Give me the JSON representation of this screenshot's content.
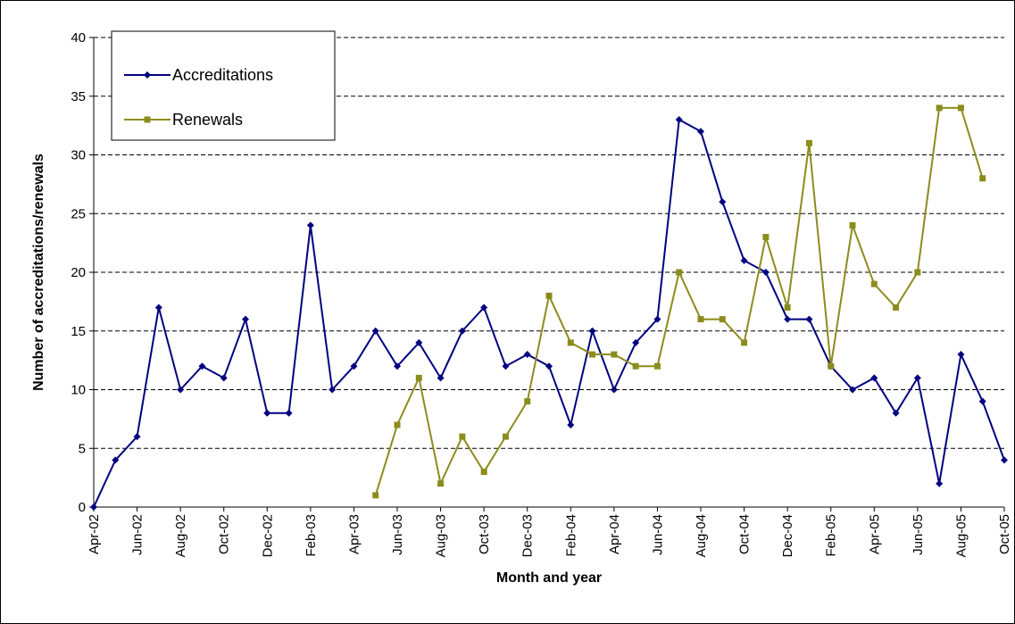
{
  "chart_data": {
    "type": "line",
    "x_label": "Month and year",
    "y_label": "Number of accreditations/renewals",
    "categories": [
      "Apr-02",
      null,
      "Jun-02",
      null,
      "Aug-02",
      null,
      "Oct-02",
      null,
      "Dec-02",
      null,
      "Feb-03",
      null,
      "Apr-03",
      null,
      "Jun-03",
      null,
      "Aug-03",
      null,
      "Oct-03",
      null,
      "Dec-03",
      null,
      "Feb-04",
      null,
      "Apr-04",
      null,
      "Jun-04",
      null,
      "Aug-04",
      null,
      "Oct-04",
      null,
      "Dec-04",
      null,
      "Feb-05",
      null,
      "Apr-05",
      null,
      "Jun-05",
      null,
      "Aug-05",
      null,
      "Oct-05"
    ],
    "series": [
      {
        "name": "Accreditations",
        "color": "#000080",
        "marker": "diamond",
        "values": [
          0,
          4,
          6,
          17,
          10,
          12,
          11,
          16,
          8,
          8,
          24,
          10,
          12,
          15,
          12,
          14,
          11,
          15,
          17,
          12,
          13,
          12,
          7,
          15,
          10,
          14,
          16,
          33,
          32,
          26,
          21,
          20,
          16,
          16,
          12,
          10,
          11,
          8,
          11,
          2,
          13,
          9,
          4
        ]
      },
      {
        "name": "Renewals",
        "color": "#8c8c1e",
        "marker": "square",
        "values": [
          null,
          null,
          null,
          null,
          null,
          null,
          null,
          null,
          null,
          null,
          null,
          null,
          null,
          1,
          7,
          11,
          2,
          6,
          3,
          6,
          9,
          18,
          14,
          13,
          13,
          12,
          12,
          20,
          16,
          16,
          14,
          23,
          17,
          31,
          12,
          24,
          19,
          17,
          20,
          34,
          34,
          28,
          null
        ]
      }
    ],
    "ylim": [
      0,
      40
    ],
    "yticks": [
      0,
      5,
      10,
      15,
      20,
      25,
      30,
      35,
      40
    ],
    "grid": true,
    "legend": "upper left"
  }
}
